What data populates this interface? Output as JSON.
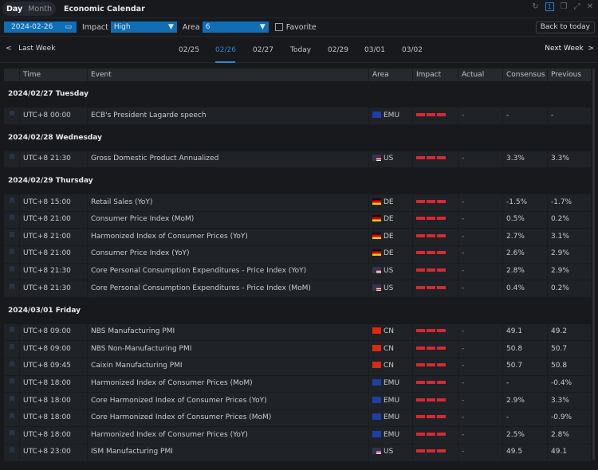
{
  "titlebar": {
    "view_day": "Day",
    "view_month": "Month",
    "title": "Economic Calendar"
  },
  "filters": {
    "date": "2024-02-26",
    "impact_label": "Impact",
    "impact_value": "High",
    "area_label": "Area",
    "area_value": "6",
    "favorite_label": "Favorite",
    "favorite_checked": false,
    "back_today": "Back to today"
  },
  "nav": {
    "last_week": "Last Week",
    "next_week": "Next Week",
    "dates": [
      "02/25",
      "02/26",
      "02/27",
      "Today",
      "02/29",
      "03/01",
      "03/02"
    ],
    "active": "02/26"
  },
  "columns": [
    "Time",
    "Event",
    "Area",
    "Impact",
    "Actual",
    "Consensus",
    "Previous"
  ],
  "colors": {
    "accent": "#0f6eb5",
    "impact": "#d62a32"
  },
  "groups": [
    {
      "date": "2024/02/27 Tuesday",
      "rows": [
        {
          "time": "UTC+8 00:00",
          "event": "ECB's President Lagarde speech",
          "area": "EMU",
          "impact": 3,
          "actual": "-",
          "consensus": "-",
          "previous": "-"
        }
      ]
    },
    {
      "date": "2024/02/28 Wednesday",
      "rows": [
        {
          "time": "UTC+8 21:30",
          "event": "Gross Domestic Product Annualized",
          "area": "US",
          "impact": 3,
          "actual": "-",
          "consensus": "3.3%",
          "previous": "3.3%"
        }
      ]
    },
    {
      "date": "2024/02/29 Thursday",
      "rows": [
        {
          "time": "UTC+8 15:00",
          "event": "Retail Sales (YoY)",
          "area": "DE",
          "impact": 3,
          "actual": "-",
          "consensus": "-1.5%",
          "previous": "-1.7%"
        },
        {
          "time": "UTC+8 21:00",
          "event": "Consumer Price Index (MoM)",
          "area": "DE",
          "impact": 3,
          "actual": "-",
          "consensus": "0.5%",
          "previous": "0.2%"
        },
        {
          "time": "UTC+8 21:00",
          "event": "Harmonized Index of Consumer Prices (YoY)",
          "area": "DE",
          "impact": 3,
          "actual": "-",
          "consensus": "2.7%",
          "previous": "3.1%"
        },
        {
          "time": "UTC+8 21:00",
          "event": "Consumer Price Index (YoY)",
          "area": "DE",
          "impact": 3,
          "actual": "-",
          "consensus": "2.6%",
          "previous": "2.9%"
        },
        {
          "time": "UTC+8 21:30",
          "event": "Core Personal Consumption Expenditures - Price Index (YoY)",
          "area": "US",
          "impact": 3,
          "actual": "-",
          "consensus": "2.8%",
          "previous": "2.9%"
        },
        {
          "time": "UTC+8 21:30",
          "event": "Core Personal Consumption Expenditures - Price Index (MoM)",
          "area": "US",
          "impact": 3,
          "actual": "-",
          "consensus": "0.4%",
          "previous": "0.2%"
        }
      ]
    },
    {
      "date": "2024/03/01 Friday",
      "rows": [
        {
          "time": "UTC+8 09:00",
          "event": "NBS Manufacturing PMI",
          "area": "CN",
          "impact": 3,
          "actual": "-",
          "consensus": "49.1",
          "previous": "49.2"
        },
        {
          "time": "UTC+8 09:00",
          "event": "NBS Non-Manufacturing PMI",
          "area": "CN",
          "impact": 3,
          "actual": "-",
          "consensus": "50.8",
          "previous": "50.7"
        },
        {
          "time": "UTC+8 09:45",
          "event": "Caixin Manufacturing PMI",
          "area": "CN",
          "impact": 3,
          "actual": "-",
          "consensus": "50.7",
          "previous": "50.8"
        },
        {
          "time": "UTC+8 18:00",
          "event": "Harmonized Index of Consumer Prices (MoM)",
          "area": "EMU",
          "impact": 3,
          "actual": "-",
          "consensus": "-",
          "previous": "-0.4%"
        },
        {
          "time": "UTC+8 18:00",
          "event": "Core Harmonized Index of Consumer Prices (YoY)",
          "area": "EMU",
          "impact": 3,
          "actual": "-",
          "consensus": "2.9%",
          "previous": "3.3%"
        },
        {
          "time": "UTC+8 18:00",
          "event": "Core Harmonized Index of Consumer Prices (MoM)",
          "area": "EMU",
          "impact": 3,
          "actual": "-",
          "consensus": "-",
          "previous": "-0.9%"
        },
        {
          "time": "UTC+8 18:00",
          "event": "Harmonized Index of Consumer Prices (YoY)",
          "area": "EMU",
          "impact": 3,
          "actual": "-",
          "consensus": "2.5%",
          "previous": "2.8%"
        },
        {
          "time": "UTC+8 23:00",
          "event": "ISM Manufacturing PMI",
          "area": "US",
          "impact": 3,
          "actual": "-",
          "consensus": "49.5",
          "previous": "49.1"
        }
      ]
    }
  ]
}
